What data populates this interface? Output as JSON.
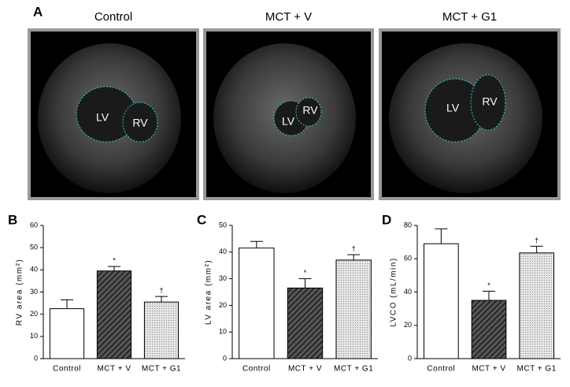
{
  "panel_a": {
    "label": "A",
    "images": [
      {
        "title": "Control",
        "labels": [
          "LV",
          "RV"
        ]
      },
      {
        "title": "MCT + V",
        "labels": [
          "LV",
          "RV"
        ]
      },
      {
        "title": "MCT + G1",
        "labels": [
          "LV",
          "RV"
        ]
      }
    ]
  },
  "chart_data": [
    {
      "type": "bar",
      "panel": "B",
      "y_label": "RV area (mm²)",
      "categories": [
        "Control",
        "MCT + V",
        "MCT + G1"
      ],
      "values": [
        22.5,
        39.5,
        25.5
      ],
      "errors": [
        4,
        2,
        2.5
      ],
      "annotations": [
        null,
        "*",
        "†"
      ],
      "colors": [
        "#ffffff",
        "#444444",
        "#dddddd"
      ],
      "ylim": [
        0,
        60
      ],
      "yticks": [
        0,
        10,
        20,
        30,
        40,
        50,
        60
      ]
    },
    {
      "type": "bar",
      "panel": "C",
      "y_label": "LV area (mm²)",
      "categories": [
        "Control",
        "MCT + V",
        "MCT + G1"
      ],
      "values": [
        41.5,
        26.5,
        37
      ],
      "errors": [
        2.5,
        3.5,
        2
      ],
      "annotations": [
        null,
        "*",
        "†"
      ],
      "colors": [
        "#ffffff",
        "#444444",
        "#dddddd"
      ],
      "ylim": [
        0,
        50
      ],
      "yticks": [
        0,
        10,
        20,
        30,
        40,
        50
      ]
    },
    {
      "type": "bar",
      "panel": "D",
      "y_label": "LVCO (mL/min)",
      "categories": [
        "Control",
        "MCT + V",
        "MCT + G1"
      ],
      "values": [
        69,
        35,
        63.5
      ],
      "errors": [
        9,
        5.5,
        4
      ],
      "annotations": [
        null,
        "*",
        "†"
      ],
      "colors": [
        "#ffffff",
        "#444444",
        "#dddddd"
      ],
      "ylim": [
        0,
        80
      ],
      "yticks": [
        0,
        20,
        40,
        60,
        80
      ]
    }
  ]
}
